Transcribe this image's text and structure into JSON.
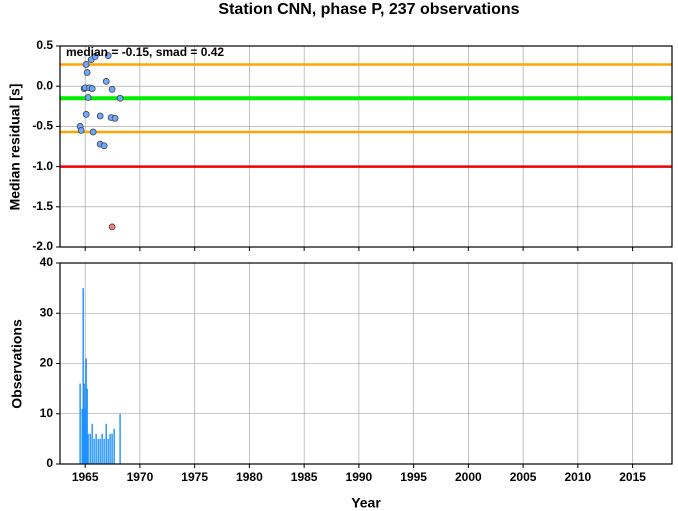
{
  "chart_data": [
    {
      "type": "scatter",
      "title": "Station CNN, phase P, 237 observations",
      "ylabel": "Median residual [s]",
      "annotation": "median = -0.15, smad = 0.42",
      "xlim": [
        1962.7,
        2018.6
      ],
      "xticks": [
        1965,
        1970,
        1975,
        1980,
        1985,
        1990,
        1995,
        2000,
        2005,
        2010,
        2015
      ],
      "ylim": [
        -2,
        0.5
      ],
      "yticks": [
        0.5,
        {
          "value": 0,
          "label": "0.0"
        },
        -0.5,
        {
          "value": -1,
          "label": "-1.0"
        },
        -1.5,
        {
          "value": -2,
          "label": "-2.0"
        }
      ],
      "grid": true,
      "hlines": [
        {
          "value": 0.27,
          "color": "#ffa500"
        },
        {
          "value": -0.15,
          "color": "#00ee00"
        },
        {
          "value": -0.57,
          "color": "#ffa500"
        },
        {
          "value": -1,
          "color": "#ee0000"
        }
      ],
      "series": [
        {
          "color": "#6fa8ff",
          "x": [
            1964.54,
            1964.63,
            1964.91,
            1965.0,
            1965.09,
            1965.18,
            1965.09,
            1965.27,
            1965.37,
            1965.64,
            1965.55,
            1965.73,
            1965.91,
            1966.37,
            1966.37,
            1966.73,
            1966.92,
            1967.1,
            1967.46,
            1967.37,
            1967.73,
            1968.19
          ],
          "values": [
            -0.5,
            -0.55,
            -0.03,
            -0.02,
            0.27,
            0.17,
            -0.35,
            -0.14,
            -0.02,
            -0.03,
            0.33,
            -0.57,
            0.37,
            -0.37,
            -0.72,
            -0.74,
            0.06,
            0.38,
            -0.04,
            -0.39,
            -0.4,
            -0.15
          ]
        },
        {
          "color": "#f08070",
          "x": [
            1967.46
          ],
          "values": [
            -1.75
          ]
        }
      ]
    },
    {
      "type": "bar",
      "ylabel": "Observations",
      "xlabel": "Year",
      "color": "#1e90ff",
      "xlim": [
        1962.7,
        2018.6
      ],
      "xticks": [
        1965,
        1970,
        1975,
        1980,
        1985,
        1990,
        1995,
        2000,
        2005,
        2010,
        2015
      ],
      "ylim": [
        0,
        40
      ],
      "yticks": [
        0,
        10,
        20,
        30,
        40
      ],
      "grid": true,
      "x": [
        1964.54,
        1964.73,
        1964.82,
        1964.91,
        1965.0,
        1965.09,
        1965.18,
        1965.27,
        1965.46,
        1965.64,
        1965.82,
        1966.0,
        1966.19,
        1966.37,
        1966.55,
        1966.73,
        1966.92,
        1967.1,
        1967.28,
        1967.46,
        1967.65,
        1968.19
      ],
      "values": [
        16,
        11,
        35,
        16,
        11,
        21,
        15,
        6,
        6,
        8,
        5,
        6,
        5,
        5,
        6,
        5,
        8,
        5,
        6,
        6,
        7,
        10
      ]
    }
  ]
}
